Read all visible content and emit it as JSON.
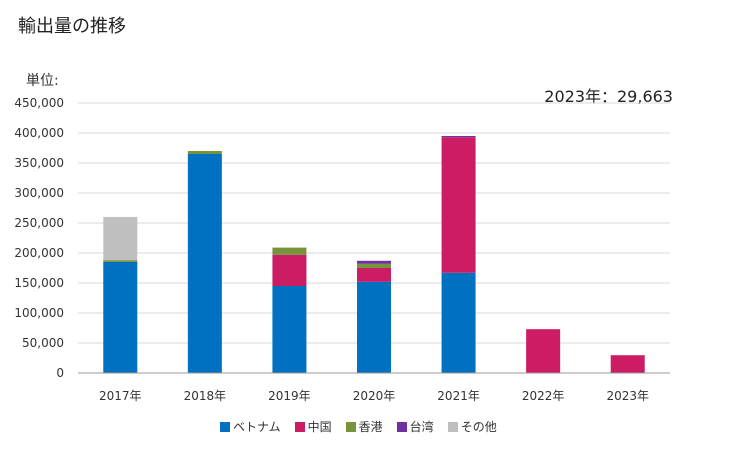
{
  "title": "輸出量の推移",
  "unit_label": "単位:",
  "latest_label": "2023年：29,663",
  "chart_data": {
    "type": "bar",
    "stacked": true,
    "categories": [
      "2017年",
      "2018年",
      "2019年",
      "2020年",
      "2021年",
      "2022年",
      "2023年"
    ],
    "series": [
      {
        "name": "ベトナム",
        "color": "#0070c0",
        "values": [
          185000,
          365000,
          145000,
          152000,
          167000,
          0,
          0
        ]
      },
      {
        "name": "中国",
        "color": "#cc1c64",
        "values": [
          0,
          0,
          52000,
          23000,
          226000,
          73000,
          29663
        ]
      },
      {
        "name": "香港",
        "color": "#77933c",
        "values": [
          3000,
          5000,
          12000,
          7000,
          0,
          0,
          0
        ]
      },
      {
        "name": "台湾",
        "color": "#7030a0",
        "values": [
          0,
          0,
          0,
          5000,
          2000,
          0,
          0
        ]
      },
      {
        "name": "その他",
        "color": "#bfbfbf",
        "values": [
          72000,
          0,
          0,
          0,
          0,
          0,
          0
        ]
      }
    ],
    "ylim": [
      0,
      450000
    ],
    "yticks": [
      0,
      50000,
      100000,
      150000,
      200000,
      250000,
      300000,
      350000,
      400000,
      450000
    ],
    "ytick_labels": [
      "0",
      "50,000",
      "100,000",
      "150,000",
      "200,000",
      "250,000",
      "300,000",
      "350,000",
      "400,000",
      "450,000"
    ],
    "grid": true,
    "legend_position": "bottom"
  }
}
